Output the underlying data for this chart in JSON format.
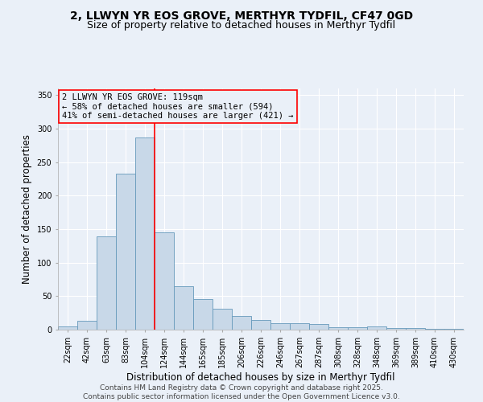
{
  "title_line1": "2, LLWYN YR EOS GROVE, MERTHYR TYDFIL, CF47 0GD",
  "title_line2": "Size of property relative to detached houses in Merthyr Tydfil",
  "xlabel": "Distribution of detached houses by size in Merthyr Tydfil",
  "ylabel": "Number of detached properties",
  "bar_labels": [
    "22sqm",
    "42sqm",
    "63sqm",
    "83sqm",
    "104sqm",
    "124sqm",
    "144sqm",
    "165sqm",
    "185sqm",
    "206sqm",
    "226sqm",
    "246sqm",
    "267sqm",
    "287sqm",
    "308sqm",
    "328sqm",
    "348sqm",
    "369sqm",
    "389sqm",
    "410sqm",
    "430sqm"
  ],
  "bar_values": [
    5,
    13,
    139,
    233,
    287,
    145,
    65,
    46,
    31,
    21,
    15,
    10,
    10,
    8,
    4,
    4,
    5,
    3,
    2,
    1,
    1
  ],
  "bar_color": "#c8d8e8",
  "bar_edge_color": "#6699bb",
  "vline_x": 4.5,
  "vline_color": "red",
  "annotation_text": "2 LLWYN YR EOS GROVE: 119sqm\n← 58% of detached houses are smaller (594)\n41% of semi-detached houses are larger (421) →",
  "annotation_box_color": "red",
  "yticks": [
    0,
    50,
    100,
    150,
    200,
    250,
    300,
    350
  ],
  "ylim": [
    0,
    360
  ],
  "footer_text": "Contains HM Land Registry data © Crown copyright and database right 2025.\nContains public sector information licensed under the Open Government Licence v3.0.",
  "bg_color": "#eaf0f8",
  "grid_color": "#ffffff",
  "title_fontsize": 10,
  "subtitle_fontsize": 9,
  "axis_label_fontsize": 8.5,
  "tick_fontsize": 7,
  "annotation_fontsize": 7.5,
  "footer_fontsize": 6.5
}
